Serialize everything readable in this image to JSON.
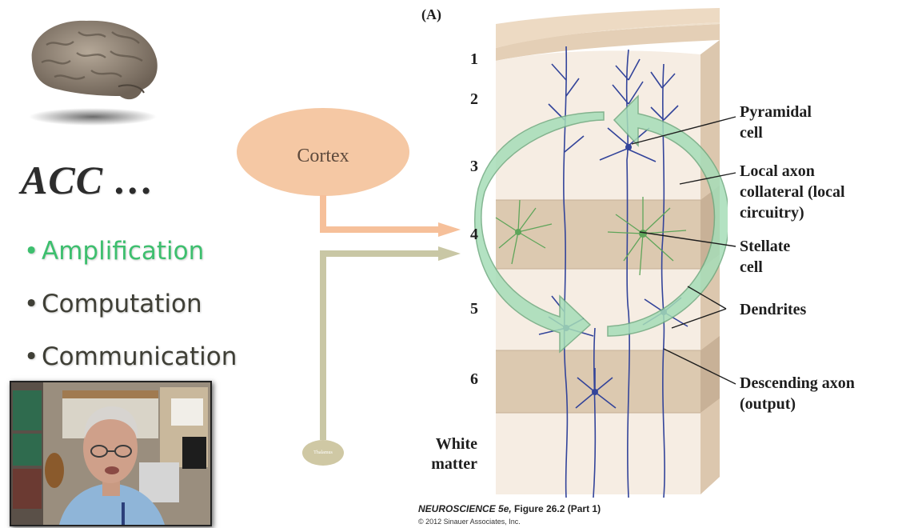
{
  "slide": {
    "title": "ACC …",
    "bullets": [
      {
        "text": "Amplification",
        "active": true
      },
      {
        "text": "Computation",
        "active": false
      },
      {
        "text": "Communication",
        "active": false
      }
    ]
  },
  "flow": {
    "cortex_label": "Cortex",
    "thalamus_label": "Thalamus",
    "colors": {
      "cortex": "#f5c8a4",
      "cortex_arrow": "#f6c09a",
      "thalamus": "#cfc8a4",
      "thalamus_arrow": "#c9c7a5"
    }
  },
  "figure": {
    "panel_label": "(A)",
    "layers": [
      "1",
      "2",
      "3",
      "4",
      "5",
      "6"
    ],
    "white_matter": [
      "White",
      "matter"
    ],
    "callouts": {
      "pyramidal": [
        "Pyramidal",
        "cell"
      ],
      "local_axon": [
        "Local axon",
        "collateral (local",
        "circuitry)"
      ],
      "stellate": [
        "Stellate",
        "cell"
      ],
      "dendrites": [
        "Dendrites"
      ],
      "descending": [
        "Descending axon",
        "(output)"
      ]
    },
    "caption_title": "NEUROSCIENCE 5e,",
    "caption_rest": " Figure 26.2 (Part 1)",
    "copyright": "© 2012 Sinauer Associates, Inc.",
    "colors": {
      "tissue": "#f6ede3",
      "band": "#d9c6ad",
      "top": "#efdfcc",
      "side": "#dcc7ae",
      "neuron_blue": "#33449a",
      "neuron_green": "#5fa55a",
      "arrow_green": "#a6ddb8"
    }
  }
}
